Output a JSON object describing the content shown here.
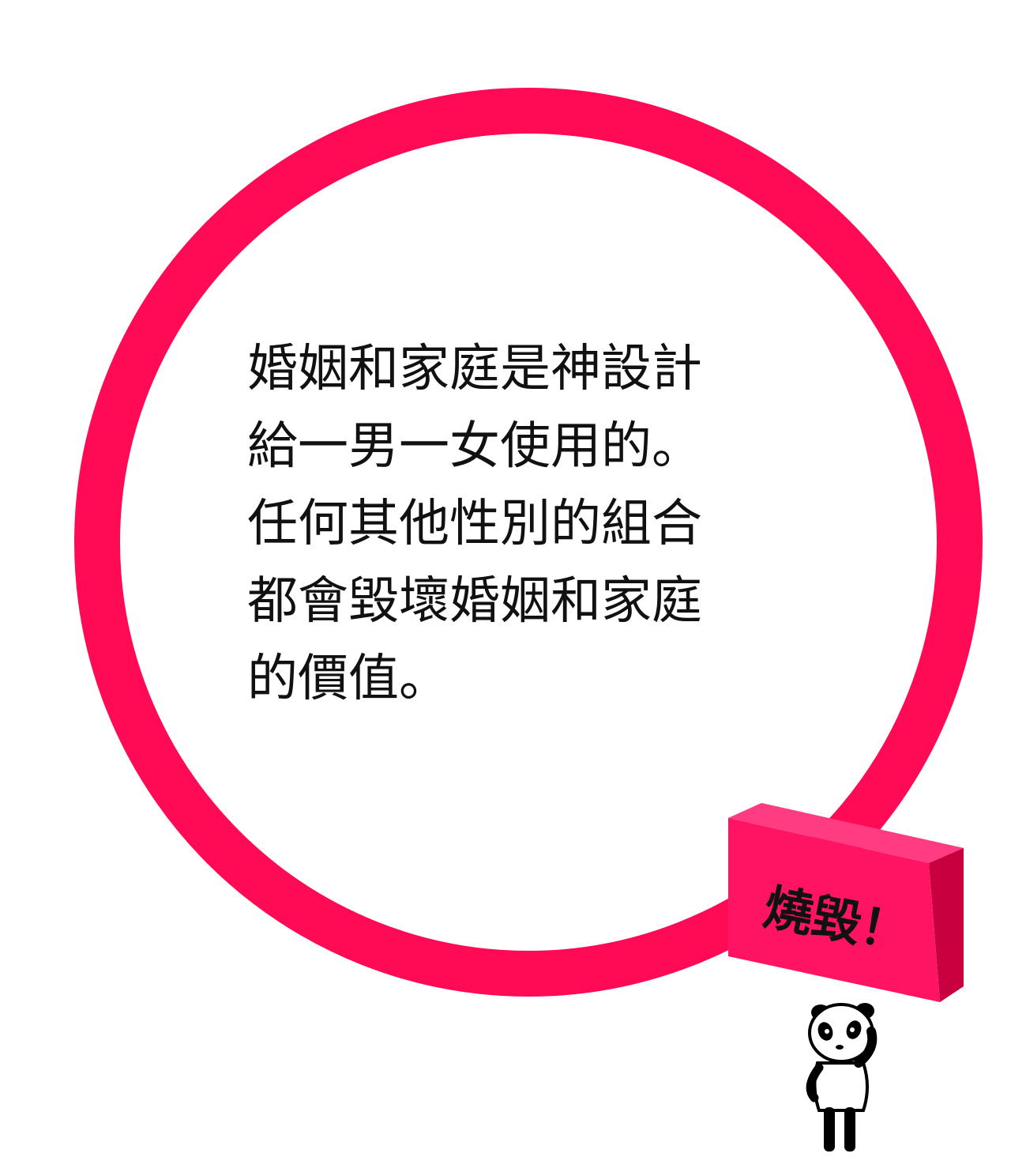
{
  "quote": {
    "lines": [
      "婚姻和家庭是神設計",
      "給一男一女使用的。",
      "任何其他性別的組合",
      "都會毀壞婚姻和家庭",
      "的價值。"
    ]
  },
  "sign": {
    "label": "燒毀！"
  },
  "colors": {
    "accent": "#ff0a54",
    "sign_front": "#ff1463",
    "sign_top": "#ff3c82",
    "sign_side": "#c8003f",
    "text": "#111111"
  },
  "icons": {
    "character": "panda-icon"
  }
}
